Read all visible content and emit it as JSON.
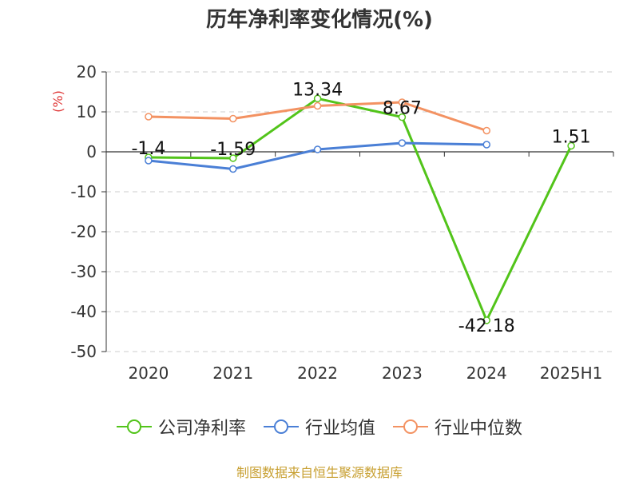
{
  "chart_data": {
    "type": "line",
    "title": "历年净利率变化情况(%)",
    "ylabel": "(%)",
    "xlabel": "",
    "categories": [
      "2020",
      "2021",
      "2022",
      "2023",
      "2024",
      "2025H1"
    ],
    "ylim": [
      -50,
      20
    ],
    "yticks": [
      20,
      10,
      0,
      -10,
      -20,
      -30,
      -40,
      -50
    ],
    "grid": true,
    "legend_position": "bottom",
    "series": [
      {
        "name": "公司净利率",
        "color": "#52c41a",
        "show_labels": true,
        "values": [
          -1.4,
          -1.59,
          13.34,
          8.67,
          -42.18,
          1.51
        ],
        "labels": [
          "-1.4",
          "-1.59",
          "13.34",
          "8.67",
          "-42.18",
          "1.51"
        ]
      },
      {
        "name": "行业均值",
        "color": "#4a7fd6",
        "show_labels": false,
        "values": [
          -2.2,
          -4.3,
          0.6,
          2.2,
          1.8,
          null
        ]
      },
      {
        "name": "行业中位数",
        "color": "#f39262",
        "show_labels": false,
        "values": [
          8.8,
          8.3,
          11.5,
          12.4,
          5.3,
          null
        ]
      }
    ]
  },
  "source_note": "制图数据来自恒生聚源数据库"
}
